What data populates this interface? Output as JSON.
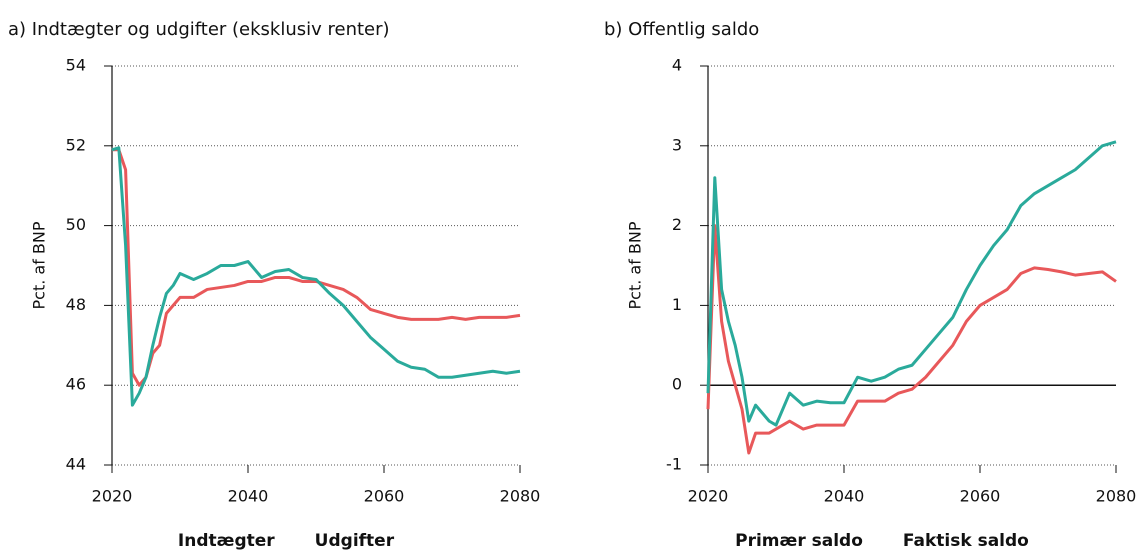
{
  "chart_data": [
    {
      "type": "line",
      "title": "a) Indtægter og udgifter (eksklusiv renter)",
      "y_label": "Pct. af BNP",
      "x": [
        2020,
        2021,
        2022,
        2023,
        2024,
        2025,
        2026,
        2027,
        2028,
        2029,
        2030,
        2032,
        2034,
        2036,
        2038,
        2040,
        2042,
        2044,
        2046,
        2048,
        2050,
        2052,
        2054,
        2056,
        2058,
        2060,
        2062,
        2064,
        2066,
        2068,
        2070,
        2072,
        2074,
        2076,
        2078,
        2080
      ],
      "xlim": [
        2020,
        2080
      ],
      "xticks": [
        2020,
        2040,
        2060,
        2080
      ],
      "ylim": [
        44,
        54
      ],
      "yticks": [
        44,
        46,
        48,
        50,
        52,
        54
      ],
      "grid": true,
      "zero_line": false,
      "legend": "bottom",
      "series": [
        {
          "name": "Indtægter",
          "color": "#e8585a",
          "values": [
            51.9,
            51.9,
            51.4,
            46.3,
            46.0,
            46.2,
            46.8,
            47.0,
            47.8,
            48.0,
            48.2,
            48.2,
            48.4,
            48.45,
            48.5,
            48.6,
            48.6,
            48.7,
            48.7,
            48.6,
            48.6,
            48.5,
            48.4,
            48.2,
            47.9,
            47.8,
            47.7,
            47.65,
            47.65,
            47.65,
            47.7,
            47.65,
            47.7,
            47.7,
            47.7,
            47.75
          ]
        },
        {
          "name": "Udgifter",
          "color": "#2aaa9b",
          "values": [
            51.9,
            51.95,
            49.5,
            45.5,
            45.8,
            46.2,
            47.0,
            47.7,
            48.3,
            48.5,
            48.8,
            48.65,
            48.8,
            49.0,
            49.0,
            49.1,
            48.7,
            48.85,
            48.9,
            48.7,
            48.65,
            48.3,
            48.0,
            47.6,
            47.2,
            46.9,
            46.6,
            46.45,
            46.4,
            46.2,
            46.2,
            46.25,
            46.3,
            46.35,
            46.3,
            46.35
          ]
        }
      ]
    },
    {
      "type": "line",
      "title": "b) Offentlig saldo",
      "y_label": "Pct. af BNP",
      "x": [
        2020,
        2021,
        2022,
        2023,
        2024,
        2025,
        2026,
        2027,
        2028,
        2029,
        2030,
        2032,
        2034,
        2036,
        2038,
        2040,
        2042,
        2044,
        2046,
        2048,
        2050,
        2052,
        2054,
        2056,
        2058,
        2060,
        2062,
        2064,
        2066,
        2068,
        2070,
        2072,
        2074,
        2076,
        2078,
        2080
      ],
      "xlim": [
        2020,
        2080
      ],
      "xticks": [
        2020,
        2040,
        2060,
        2080
      ],
      "ylim": [
        -1,
        4
      ],
      "yticks": [
        -1,
        0,
        1,
        2,
        3,
        4
      ],
      "grid": true,
      "zero_line": true,
      "legend": "bottom",
      "series": [
        {
          "name": "Primær saldo",
          "color": "#e8585a",
          "values": [
            -0.3,
            2.0,
            0.8,
            0.3,
            0.0,
            -0.3,
            -0.85,
            -0.6,
            -0.6,
            -0.6,
            -0.55,
            -0.45,
            -0.55,
            -0.5,
            -0.5,
            -0.5,
            -0.2,
            -0.2,
            -0.2,
            -0.1,
            -0.05,
            0.1,
            0.3,
            0.5,
            0.8,
            1.0,
            1.1,
            1.2,
            1.4,
            1.47,
            1.45,
            1.42,
            1.38,
            1.4,
            1.42,
            1.3
          ]
        },
        {
          "name": "Faktisk saldo",
          "color": "#2aaa9b",
          "values": [
            -0.1,
            2.6,
            1.2,
            0.8,
            0.5,
            0.1,
            -0.45,
            -0.25,
            -0.35,
            -0.45,
            -0.5,
            -0.1,
            -0.25,
            -0.2,
            -0.22,
            -0.22,
            0.1,
            0.05,
            0.1,
            0.2,
            0.25,
            0.45,
            0.65,
            0.85,
            1.2,
            1.5,
            1.75,
            1.95,
            2.25,
            2.4,
            2.5,
            2.6,
            2.7,
            2.85,
            3.0,
            3.05
          ]
        }
      ]
    }
  ]
}
